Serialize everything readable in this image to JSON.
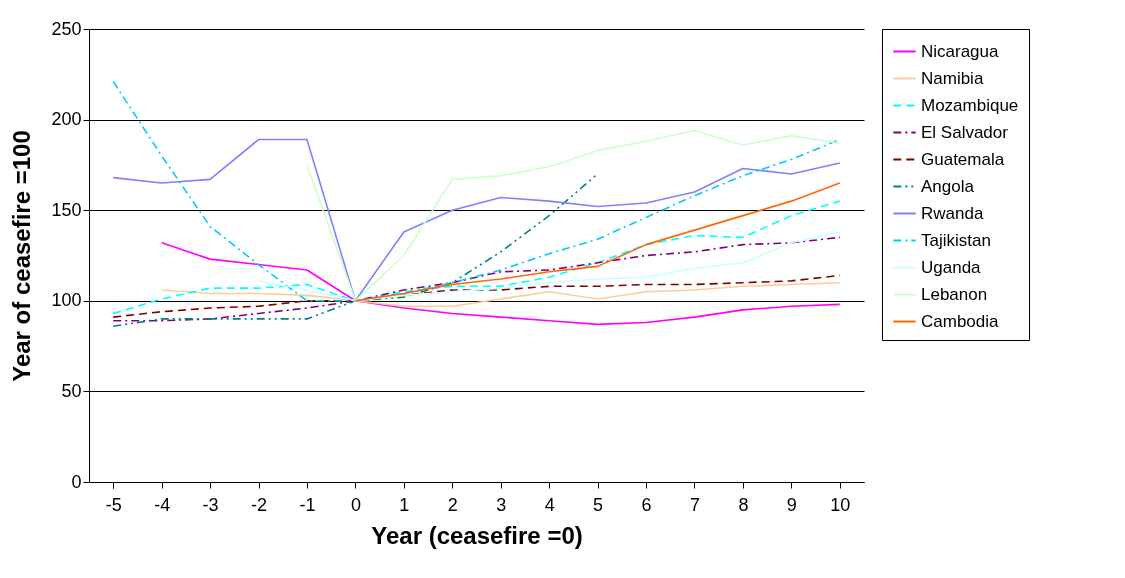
{
  "chart_data": {
    "type": "line",
    "xlabel": "Year (ceasefire =0)",
    "ylabel": "Year of ceasefire =100",
    "categories": [
      "-5",
      "-4",
      "-3",
      "-2",
      "-1",
      "0",
      "1",
      "2",
      "3",
      "4",
      "5",
      "6",
      "7",
      "8",
      "9",
      "10"
    ],
    "ylim": [
      0,
      250
    ],
    "yticks": [
      0,
      50,
      100,
      150,
      200,
      250
    ],
    "grid": "y",
    "legend": "right",
    "marker": "none",
    "series": [
      {
        "name": "Nicaragua",
        "color": "#ff00ff",
        "line_style": "solid",
        "values": [
          null,
          132,
          123,
          120,
          117,
          100,
          96,
          93,
          91,
          89,
          87,
          88,
          91,
          95,
          97,
          98
        ]
      },
      {
        "name": "Namibia",
        "color": "#ffcc99",
        "line_style": "solid",
        "values": [
          null,
          106,
          104,
          104,
          103,
          100,
          97,
          97,
          101,
          105,
          101,
          105,
          106,
          108,
          109,
          110
        ]
      },
      {
        "name": "Mozambique",
        "color": "#00ffff",
        "line_style": "dashed",
        "values": [
          93,
          101,
          107,
          107,
          109,
          100,
          105,
          108,
          108,
          113,
          121,
          131,
          136,
          135,
          147,
          155
        ]
      },
      {
        "name": "El Salvador",
        "color": "#800080",
        "line_style": "dashdot",
        "values": [
          89,
          89,
          90,
          93,
          96,
          100,
          106,
          110,
          116,
          117,
          121,
          125,
          127,
          131,
          132,
          135
        ]
      },
      {
        "name": "Guatemala",
        "color": "#800000",
        "line_style": "dashed",
        "values": [
          91,
          94,
          96,
          97,
          100,
          100,
          103,
          106,
          106,
          108,
          108,
          109,
          109,
          110,
          111,
          114
        ]
      },
      {
        "name": "Angola",
        "color": "#008080",
        "line_style": "dashdotdot",
        "values": [
          86,
          90,
          90,
          90,
          90,
          100,
          102,
          110,
          127,
          147,
          170,
          null,
          null,
          null,
          null,
          null
        ]
      },
      {
        "name": "Rwanda",
        "color": "#8080ff",
        "line_style": "solid",
        "values": [
          168,
          165,
          167,
          189,
          189,
          100,
          138,
          150,
          157,
          155,
          152,
          154,
          160,
          173,
          170,
          176
        ]
      },
      {
        "name": "Tajikistan",
        "color": "#00ccff",
        "line_style": "dashdot",
        "values": [
          221,
          180,
          141,
          120,
          100,
          100,
          104,
          110,
          117,
          126,
          134,
          146,
          158,
          169,
          178,
          189
        ]
      },
      {
        "name": "Uganda",
        "color": "#ccffff",
        "line_style": "solid",
        "values": [
          null,
          null,
          null,
          111,
          106,
          100,
          103,
          105,
          107,
          110,
          112,
          113,
          118,
          121,
          132,
          138
        ]
      },
      {
        "name": "Lebanon",
        "color": "#ccffcc",
        "line_style": "solid",
        "values": [
          null,
          null,
          null,
          null,
          175,
          100,
          125,
          167,
          169,
          174,
          183,
          188,
          194,
          186,
          191,
          187
        ]
      },
      {
        "name": "Cambodia",
        "color": "#ff6600",
        "line_style": "solid",
        "values": [
          null,
          null,
          null,
          null,
          null,
          100,
          104,
          109,
          112,
          116,
          119,
          131,
          139,
          147,
          155,
          165
        ]
      }
    ]
  }
}
